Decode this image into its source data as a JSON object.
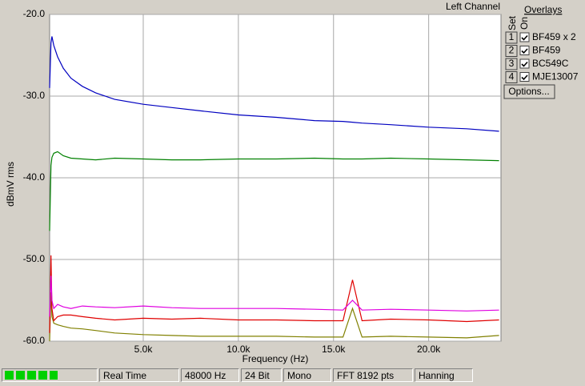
{
  "chart_data": {
    "type": "line",
    "title": "Left Channel",
    "x_label": "Frequency (Hz)",
    "y_label": "dBmV rms",
    "x": [
      80,
      150,
      200,
      300,
      500,
      800,
      1200,
      1800,
      2500,
      3500,
      5000,
      6500,
      8000,
      10000,
      12000,
      14000,
      15500,
      16000,
      16500,
      18000,
      20000,
      22000,
      23700
    ],
    "series": [
      {
        "name": "BF459 x 2",
        "color": "#e00000",
        "values": [
          -59,
          -49.5,
          -56,
          -57.5,
          -57,
          -56.8,
          -56.8,
          -57,
          -57.2,
          -57.4,
          -57.2,
          -57.3,
          -57.2,
          -57.4,
          -57.4,
          -57.5,
          -57.5,
          -52.5,
          -57.5,
          -57.3,
          -57.4,
          -57.6,
          -57.4
        ]
      },
      {
        "name": "BF459",
        "color": "#e000e0",
        "values": [
          -57,
          -52,
          -55,
          -56,
          -55.5,
          -55.8,
          -56,
          -55.7,
          -55.8,
          -55.9,
          -55.7,
          -55.9,
          -56,
          -56,
          -56,
          -56.1,
          -56.2,
          -55,
          -56.2,
          -56.1,
          -56.2,
          -56.3,
          -56.2
        ]
      },
      {
        "name": "BC549C",
        "color": "#008000",
        "values": [
          -46.5,
          -38.5,
          -37.5,
          -37,
          -36.8,
          -37.3,
          -37.6,
          -37.7,
          -37.8,
          -37.6,
          -37.7,
          -37.8,
          -37.8,
          -37.7,
          -37.7,
          -37.6,
          -37.7,
          -37.7,
          -37.7,
          -37.6,
          -37.7,
          -37.8,
          -37.9
        ]
      },
      {
        "name": "MJE13007",
        "color": "#808000",
        "values": [
          -60,
          -54,
          -57,
          -57.8,
          -58,
          -58.2,
          -58.4,
          -58.5,
          -58.7,
          -59,
          -59.2,
          -59.3,
          -59.4,
          -59.4,
          -59.4,
          -59.5,
          -59.5,
          -56,
          -59.5,
          -59.4,
          -59.5,
          -59.6,
          -59.3
        ]
      },
      {
        "color": "#0000c0",
        "values": [
          -29,
          -23.5,
          -22.7,
          -23.8,
          -25.2,
          -26.6,
          -27.8,
          -28.8,
          -29.6,
          -30.4,
          -31,
          -31.4,
          -31.8,
          -32.3,
          -32.6,
          -33,
          -33.1,
          -33.2,
          -33.3,
          -33.5,
          -33.8,
          -34,
          -34.3
        ]
      }
    ],
    "xlim": [
      80,
      23800
    ],
    "ylim": [
      -60,
      -20
    ],
    "xticks": [
      {
        "value": 5000,
        "label": "5.0k"
      },
      {
        "value": 10000,
        "label": "10.0k"
      },
      {
        "value": 15000,
        "label": "15.0k"
      },
      {
        "value": 20000,
        "label": "20.0k"
      }
    ],
    "yticks": [
      {
        "value": -20,
        "label": "-20.0"
      },
      {
        "value": -30,
        "label": "-30.0"
      },
      {
        "value": -40,
        "label": "-40.0"
      },
      {
        "value": -50,
        "label": "-50.0"
      },
      {
        "value": -60,
        "label": "-60.0"
      }
    ],
    "grid": true
  },
  "overlays": {
    "title": "Overlays",
    "set_label": "Set",
    "on_label": "On",
    "sets": [
      "1",
      "2",
      "3",
      "4"
    ],
    "button": "Options..."
  },
  "status": [
    "Real Time",
    "48000 Hz",
    "24 Bit",
    "Mono",
    "FFT 8192 pts",
    "Hanning"
  ]
}
